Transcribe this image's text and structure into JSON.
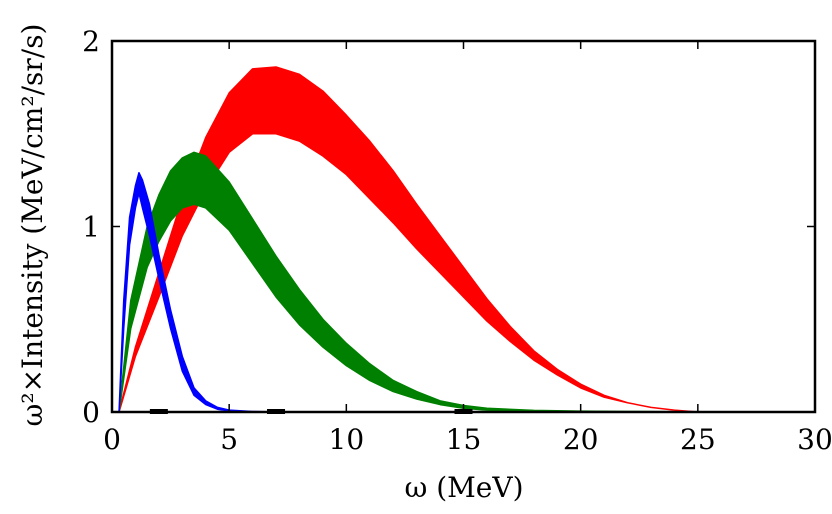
{
  "chart_data": {
    "type": "area",
    "title": "",
    "xlabel": "ω (MeV)",
    "ylabel": "ω²×Intensity (MeV/cm²/sr/s)",
    "xlim": [
      0,
      30
    ],
    "ylim": [
      0,
      2
    ],
    "x_ticks": [
      0,
      5,
      10,
      15,
      20,
      25,
      30
    ],
    "x_tick_labels": [
      "0",
      "5",
      "10",
      "15",
      "20",
      "25",
      "30"
    ],
    "y_ticks": [
      0,
      1,
      2
    ],
    "y_tick_labels": [
      "0",
      "1",
      "2"
    ],
    "grid": false,
    "legend": "none",
    "baseline": {
      "y": 0,
      "style": "dotted"
    },
    "series": [
      {
        "name": "blue band",
        "color": "#0000ff",
        "x": [
          0.3,
          0.5,
          0.75,
          1.0,
          1.15,
          1.3,
          1.6,
          2.0,
          2.5,
          3.0,
          3.5,
          4.0,
          4.5,
          5.0,
          6.0,
          7.0
        ],
        "lower": [
          0.0,
          0.45,
          0.9,
          1.1,
          1.18,
          1.1,
          0.95,
          0.72,
          0.45,
          0.22,
          0.09,
          0.04,
          0.015,
          0.006,
          0.002,
          0.0
        ],
        "upper": [
          0.0,
          0.6,
          1.05,
          1.22,
          1.29,
          1.25,
          1.12,
          0.85,
          0.55,
          0.3,
          0.13,
          0.06,
          0.025,
          0.01,
          0.003,
          0.0
        ]
      },
      {
        "name": "green band",
        "color": "#008000",
        "x": [
          0.3,
          0.8,
          1.5,
          2.0,
          2.5,
          3.0,
          3.5,
          4.0,
          5.0,
          6.0,
          7.0,
          8.0,
          9.0,
          10.0,
          11.0,
          12.0,
          13.0,
          14.0,
          15.0,
          16.0,
          18.0,
          20.0,
          22.0,
          25.0,
          27.5
        ],
        "lower": [
          0.0,
          0.45,
          0.78,
          0.92,
          1.03,
          1.1,
          1.12,
          1.1,
          0.98,
          0.8,
          0.62,
          0.47,
          0.35,
          0.25,
          0.17,
          0.11,
          0.07,
          0.04,
          0.02,
          0.01,
          0.004,
          0.002,
          0.001,
          0.0,
          0.0
        ],
        "upper": [
          0.0,
          0.6,
          1.0,
          1.17,
          1.3,
          1.37,
          1.4,
          1.38,
          1.24,
          1.04,
          0.84,
          0.66,
          0.5,
          0.37,
          0.26,
          0.17,
          0.11,
          0.06,
          0.035,
          0.02,
          0.009,
          0.005,
          0.003,
          0.001,
          0.0
        ]
      },
      {
        "name": "red band",
        "color": "#ff0000",
        "x": [
          0.3,
          1.0,
          2.0,
          3.0,
          4.0,
          5.0,
          6.0,
          7.0,
          8.0,
          9.0,
          10.0,
          11.0,
          12.0,
          13.0,
          14.0,
          15.0,
          16.0,
          17.0,
          18.0,
          19.0,
          20.0,
          21.0,
          22.0,
          23.0,
          24.0,
          25.0
        ],
        "lower": [
          0.0,
          0.3,
          0.62,
          0.95,
          1.2,
          1.4,
          1.5,
          1.5,
          1.46,
          1.38,
          1.28,
          1.15,
          1.02,
          0.88,
          0.75,
          0.62,
          0.49,
          0.38,
          0.28,
          0.2,
          0.13,
          0.08,
          0.05,
          0.025,
          0.01,
          0.0
        ],
        "upper": [
          0.0,
          0.35,
          0.75,
          1.15,
          1.48,
          1.72,
          1.85,
          1.86,
          1.82,
          1.73,
          1.6,
          1.46,
          1.3,
          1.12,
          0.95,
          0.78,
          0.61,
          0.46,
          0.33,
          0.23,
          0.15,
          0.09,
          0.05,
          0.025,
          0.01,
          0.0
        ]
      }
    ],
    "markers": {
      "color": "#000000",
      "x": [
        2.0,
        7.0,
        15.0
      ]
    }
  }
}
